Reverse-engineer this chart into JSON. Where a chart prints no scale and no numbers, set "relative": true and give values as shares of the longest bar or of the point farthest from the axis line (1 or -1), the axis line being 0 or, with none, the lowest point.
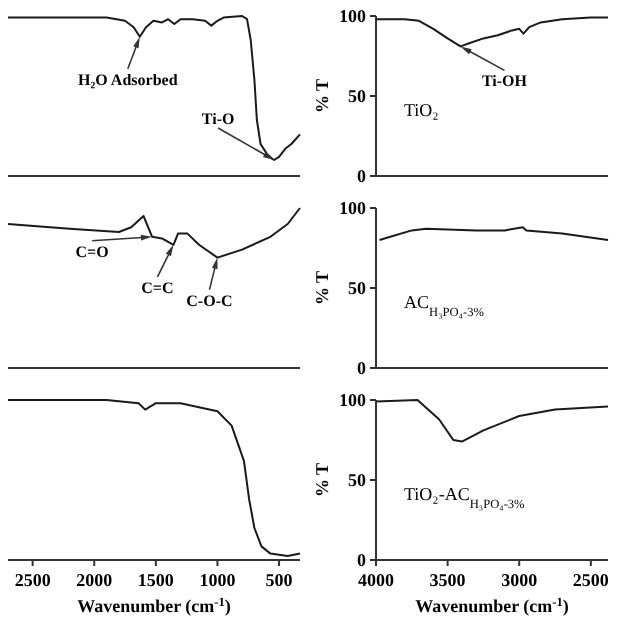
{
  "chart_data": [
    {
      "type": "line",
      "relative": true,
      "tick_labels": false,
      "xlim": [
        2700,
        330
      ],
      "x": [
        2700,
        2400,
        2100,
        1900,
        1750,
        1680,
        1630,
        1580,
        1520,
        1450,
        1400,
        1350,
        1300,
        1200,
        1100,
        1050,
        1000,
        950,
        800,
        760,
        730,
        700,
        680,
        650,
        600,
        560,
        540,
        500,
        450,
        400,
        330
      ],
      "series": [
        {
          "color": "#1a1a1a",
          "values": [
            0.99,
            0.99,
            0.99,
            0.99,
            0.97,
            0.93,
            0.87,
            0.93,
            0.97,
            0.96,
            0.98,
            0.95,
            0.98,
            0.98,
            0.97,
            0.94,
            0.97,
            0.99,
            1.0,
            0.98,
            0.85,
            0.6,
            0.35,
            0.2,
            0.14,
            0.11,
            0.1,
            0.12,
            0.17,
            0.2,
            0.26
          ]
        }
      ],
      "annotations": [
        {
          "text": "H₂O Adsorbed",
          "x": 1630,
          "y": 0.87
        },
        {
          "text": "Ti-O",
          "x": 540,
          "y": 0.1
        }
      ]
    },
    {
      "type": "line",
      "tick_labels": "y",
      "ylabel": "% T",
      "xlim": [
        4000,
        2380
      ],
      "ylim": [
        0,
        100
      ],
      "yticks": [
        0,
        50,
        100
      ],
      "x": [
        4000,
        3800,
        3700,
        3600,
        3500,
        3410,
        3350,
        3250,
        3150,
        3050,
        3000,
        2970,
        2930,
        2850,
        2700,
        2500,
        2380
      ],
      "series": [
        {
          "color": "#1a1a1a",
          "values": [
            98,
            98,
            97,
            92,
            86,
            81,
            83,
            86,
            88,
            91,
            92,
            89,
            93,
            96,
            98,
            99,
            99
          ]
        }
      ],
      "annotations": [
        {
          "text": "Ti-OH",
          "x": 3410,
          "y": 81
        },
        "TiO₂"
      ]
    },
    {
      "type": "line",
      "relative": true,
      "tick_labels": false,
      "xlim": [
        2700,
        330
      ],
      "x": [
        2700,
        2200,
        1800,
        1700,
        1600,
        1530,
        1450,
        1357,
        1320,
        1243,
        1150,
        1000,
        800,
        570,
        430,
        330
      ],
      "series": [
        {
          "color": "#1a1a1a",
          "values": [
            0.9,
            0.87,
            0.85,
            0.88,
            0.95,
            0.82,
            0.81,
            0.77,
            0.84,
            0.84,
            0.77,
            0.69,
            0.74,
            0.82,
            0.9,
            1.0
          ]
        }
      ],
      "annotations": [
        {
          "text": "C=O",
          "x": 1530,
          "y": 0.82
        },
        {
          "text": "C=C",
          "x": 1357,
          "y": 0.77
        },
        {
          "text": "C-O-C",
          "x": 1000,
          "y": 0.69
        }
      ]
    },
    {
      "type": "line",
      "tick_labels": "y",
      "ylabel": "% T",
      "xlim": [
        4000,
        2380
      ],
      "ylim": [
        0,
        100
      ],
      "yticks": [
        0,
        50,
        100
      ],
      "x": [
        3975,
        3900,
        3750,
        3650,
        3300,
        3100,
        2975,
        2950,
        2700,
        2380
      ],
      "series": [
        {
          "color": "#1a1a1a",
          "values": [
            80,
            82,
            86,
            87,
            86,
            86,
            88,
            86,
            84,
            80
          ]
        }
      ],
      "annotations": [
        "AC$_{H₃PO₄-3%}$"
      ]
    },
    {
      "type": "line",
      "relative": true,
      "tick_labels": "x",
      "xlabel": "Wavenumber (cm$^{-1}$)",
      "xlim": [
        2700,
        330
      ],
      "xticks": [
        2500,
        2000,
        1500,
        1000,
        500
      ],
      "x": [
        2700,
        2300,
        1900,
        1640,
        1586,
        1500,
        1300,
        1000,
        885,
        785,
        743,
        700,
        643,
        570,
        430,
        330
      ],
      "series": [
        {
          "color": "#1a1a1a",
          "values": [
            1.0,
            1.0,
            1.0,
            0.98,
            0.94,
            0.98,
            0.98,
            0.93,
            0.84,
            0.62,
            0.38,
            0.2,
            0.085,
            0.04,
            0.025,
            0.04
          ]
        }
      ]
    },
    {
      "type": "line",
      "ylabel": "% T",
      "xlabel": "Wavenumber (cm$^{-1}$)",
      "xlim": [
        4000,
        2380
      ],
      "xticks": [
        4000,
        3500,
        3000,
        2500
      ],
      "ylim": [
        0,
        100
      ],
      "yticks": [
        0,
        50,
        100
      ],
      "x": [
        4000,
        3710,
        3560,
        3460,
        3400,
        3250,
        3000,
        2750,
        2380
      ],
      "series": [
        {
          "color": "#1a1a1a",
          "values": [
            99,
            100,
            88,
            75,
            74,
            81,
            90,
            94,
            96
          ]
        }
      ],
      "annotations": [
        "TiO₂-AC$_{H₃PO₄-3%}$"
      ]
    }
  ]
}
